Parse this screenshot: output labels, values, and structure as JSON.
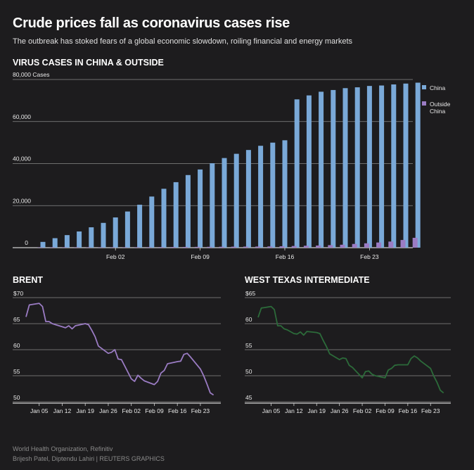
{
  "header": {
    "title": "Crude prices fall as coronavirus cases rise",
    "subtitle": "The outbreak has stoked fears of a global economic slowdown, roiling financial and energy markets"
  },
  "footer": {
    "source": "World Health Organization, Refinitiv",
    "credit": "Brijesh Patel, Diptendu Lahiri   | REUTERS GRAPHICS"
  },
  "colors": {
    "china": "#7aa9d8",
    "outside": "#9b7cc4",
    "brent": "#9b7cc4",
    "wti": "#2c6b3a",
    "grid": "#8a8a8a",
    "text": "#e8e8e8"
  },
  "chart_data": [
    {
      "id": "cases",
      "type": "bar",
      "title": "VIRUS CASES IN CHINA & OUTSIDE",
      "ylabel": "Cases",
      "ylim": [
        0,
        80000
      ],
      "yticks": [
        0,
        20000,
        40000,
        60000,
        80000
      ],
      "ytick_labels": [
        "0",
        "20,000",
        "40,000",
        "60,000",
        "80,000 Cases"
      ],
      "xtick_labels": [
        "Feb 02",
        "Feb 09",
        "Feb 16",
        "Feb 23"
      ],
      "xtick_index": [
        6,
        13,
        20,
        27
      ],
      "legend": [
        "China",
        "Outside China"
      ],
      "dates_start": "Jan 27",
      "series": [
        {
          "name": "China",
          "values": [
            2744,
            4515,
            5974,
            7711,
            9692,
            11791,
            14380,
            17205,
            20438,
            24324,
            28018,
            31161,
            34546,
            37198,
            40171,
            42638,
            44653,
            46472,
            48467,
            49970,
            51091,
            70548,
            72436,
            74185,
            75002,
            75891,
            76288,
            76936,
            77150,
            77658,
            78064,
            78497
          ]
        },
        {
          "name": "Outside China",
          "values": [
            50,
            60,
            80,
            110,
            130,
            150,
            180,
            190,
            220,
            260,
            290,
            320,
            350,
            380,
            400,
            440,
            480,
            510,
            530,
            580,
            680,
            790,
            920,
            1020,
            1200,
            1400,
            1770,
            2070,
            2460,
            2910,
            3660,
            4690
          ]
        }
      ]
    },
    {
      "id": "brent",
      "type": "line",
      "title": "BRENT",
      "ylim": [
        50,
        70
      ],
      "yticks": [
        50,
        55,
        60,
        65,
        70
      ],
      "ytick_labels": [
        "50",
        "55",
        "60",
        "65",
        "$70"
      ],
      "xtick_labels": [
        "Jan 05",
        "Jan 12",
        "Jan 19",
        "Jan 26",
        "Feb 02",
        "Feb 09",
        "Feb 16",
        "Feb 23"
      ],
      "xtick_day": [
        5,
        12,
        19,
        26,
        33,
        40,
        47,
        54
      ],
      "xrange": [
        1,
        60
      ],
      "x": [
        1,
        2,
        3,
        5,
        6,
        7,
        8,
        9,
        10,
        12,
        13,
        14,
        15,
        16,
        19,
        20,
        21,
        22,
        23,
        26,
        27,
        28,
        29,
        30,
        33,
        34,
        35,
        36,
        37,
        40,
        41,
        42,
        43,
        44,
        47,
        48,
        49,
        50,
        51,
        54,
        55,
        56,
        57,
        58
      ],
      "y": [
        66.3,
        68.6,
        68.7,
        68.9,
        68.3,
        65.4,
        65.4,
        65.0,
        64.8,
        64.4,
        64.2,
        64.6,
        64.0,
        64.6,
        65.0,
        64.8,
        63.7,
        62.5,
        60.7,
        59.3,
        59.5,
        60.0,
        58.2,
        58.1,
        54.4,
        53.9,
        55.1,
        54.5,
        54.0,
        53.3,
        53.9,
        55.5,
        56.0,
        57.3,
        57.7,
        57.8,
        59.1,
        59.3,
        58.6,
        56.3,
        55.0,
        53.4,
        51.7,
        51.3
      ]
    },
    {
      "id": "wti",
      "type": "line",
      "title": "WEST TEXAS INTERMEDIATE",
      "ylim": [
        45,
        65
      ],
      "yticks": [
        45,
        50,
        55,
        60,
        65
      ],
      "ytick_labels": [
        "45",
        "50",
        "55",
        "60",
        "$65"
      ],
      "xtick_labels": [
        "Jan 05",
        "Jan 12",
        "Jan 19",
        "Jan 26",
        "Feb 02",
        "Feb 09",
        "Feb 16",
        "Feb 23"
      ],
      "xtick_day": [
        5,
        12,
        19,
        26,
        33,
        40,
        47,
        54
      ],
      "xrange": [
        1,
        60
      ],
      "x": [
        1,
        2,
        3,
        5,
        6,
        7,
        8,
        9,
        10,
        12,
        13,
        14,
        15,
        16,
        19,
        20,
        21,
        22,
        23,
        26,
        27,
        28,
        29,
        30,
        33,
        34,
        35,
        36,
        37,
        40,
        41,
        42,
        43,
        44,
        47,
        48,
        49,
        50,
        51,
        54,
        55,
        56,
        57,
        58
      ],
      "y": [
        61.2,
        63.0,
        63.1,
        63.3,
        62.7,
        59.6,
        59.6,
        59.0,
        58.8,
        58.1,
        58.0,
        58.4,
        57.8,
        58.5,
        58.3,
        58.1,
        56.8,
        55.6,
        54.2,
        53.1,
        53.4,
        53.3,
        52.0,
        51.6,
        49.6,
        50.8,
        50.9,
        50.3,
        50.0,
        49.6,
        51.1,
        51.4,
        52.0,
        52.1,
        52.1,
        53.3,
        53.8,
        53.4,
        52.8,
        51.4,
        49.9,
        48.7,
        47.2,
        46.7
      ]
    }
  ]
}
